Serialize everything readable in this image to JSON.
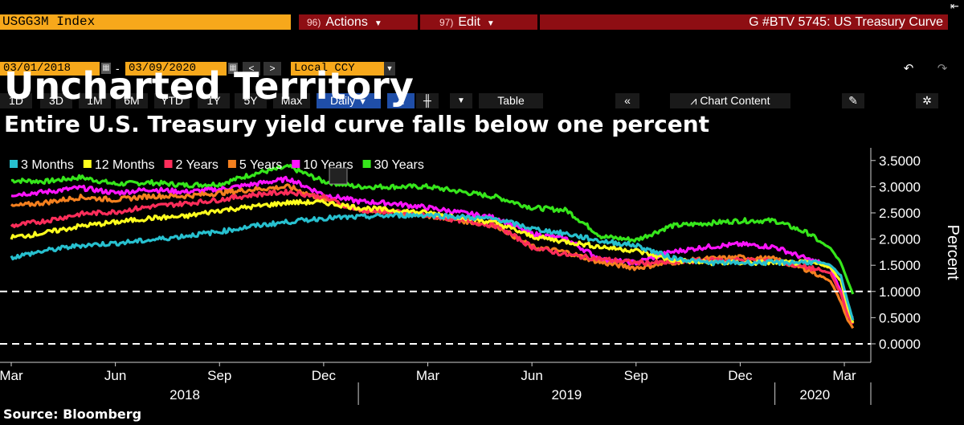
{
  "toolbar": {
    "ticker": "USGG3M Index",
    "actions_num": "96)",
    "actions_label": "Actions",
    "edit_num": "97)",
    "edit_label": "Edit",
    "chart_name": "G #BTV 5745: US Treasury Curve",
    "start_date": "03/01/2018",
    "dash": "-",
    "end_date": "03/09/2020",
    "currency": "Local CCY",
    "periods": [
      "1D",
      "3D",
      "1M",
      "6M",
      "YTD",
      "1Y",
      "5Y",
      "Max"
    ],
    "frequency": "Daily",
    "table_label": "Table",
    "chart_content_label": "Chart Content"
  },
  "headline": "Uncharted Territory",
  "subheadline": "Entire U.S. Treasury yield curve falls below one percent",
  "source": "Source: Bloomberg",
  "colors": {
    "m3": "#27c0cf",
    "m12": "#ffff1e",
    "y2": "#ff2d5a",
    "y5": "#f4801f",
    "y10": "#ff14ff",
    "y30": "#36e61b",
    "ticker_bg": "#f7a81b",
    "red_bar": "#8e0e13"
  },
  "chart_data": {
    "type": "line",
    "title": "Entire U.S. Treasury yield curve falls below one percent",
    "xlabel": "",
    "ylabel": "Percent",
    "ylim": [
      -0.2,
      3.65
    ],
    "x_range": [
      0,
      24.3
    ],
    "x_unit": "months since 2018-03-01",
    "y_ticks": [
      "3.5000",
      "3.0000",
      "2.5000",
      "2.0000",
      "1.5000",
      "1.0000",
      "0.5000",
      "0.0000"
    ],
    "y_tick_values": [
      3.5,
      3.0,
      2.5,
      2.0,
      1.5,
      1.0,
      0.5,
      0.0
    ],
    "x_ticks": [
      {
        "label": "Mar",
        "x": 0
      },
      {
        "label": "Jun",
        "x": 3
      },
      {
        "label": "Sep",
        "x": 6
      },
      {
        "label": "Dec",
        "x": 9
      },
      {
        "label": "Mar",
        "x": 12
      },
      {
        "label": "Jun",
        "x": 15
      },
      {
        "label": "Sep",
        "x": 18
      },
      {
        "label": "Dec",
        "x": 21
      },
      {
        "label": "Mar",
        "x": 24
      }
    ],
    "year_labels": [
      {
        "label": "2018",
        "from": 0,
        "to": 10
      },
      {
        "label": "2019",
        "from": 10,
        "to": 22
      },
      {
        "label": "2020",
        "from": 22,
        "to": 24.3
      }
    ],
    "reference_lines": [
      1.0,
      0.0
    ],
    "legend": "top-left",
    "x": [
      0,
      1,
      2,
      3,
      4,
      5,
      6,
      7,
      8,
      9,
      10,
      11,
      12,
      13,
      14,
      15,
      16,
      17,
      18,
      19,
      20,
      21,
      22,
      23,
      23.3,
      23.6,
      23.9,
      24.1,
      24.25
    ],
    "series": [
      {
        "name": "3 Months",
        "key": "m3",
        "values": [
          1.65,
          1.78,
          1.88,
          1.92,
          1.98,
          2.06,
          2.14,
          2.25,
          2.33,
          2.4,
          2.42,
          2.45,
          2.46,
          2.42,
          2.38,
          2.2,
          2.1,
          1.96,
          1.88,
          1.65,
          1.55,
          1.55,
          1.55,
          1.56,
          1.55,
          1.5,
          1.3,
          0.8,
          0.45
        ]
      },
      {
        "name": "12 Months",
        "key": "m12",
        "values": [
          2.03,
          2.12,
          2.25,
          2.32,
          2.4,
          2.43,
          2.55,
          2.62,
          2.7,
          2.7,
          2.6,
          2.55,
          2.5,
          2.42,
          2.3,
          2.05,
          1.95,
          1.85,
          1.78,
          1.6,
          1.55,
          1.55,
          1.55,
          1.55,
          1.52,
          1.45,
          1.2,
          0.7,
          0.4
        ]
      },
      {
        "name": "2 Years",
        "key": "y2",
        "values": [
          2.25,
          2.35,
          2.48,
          2.52,
          2.62,
          2.68,
          2.75,
          2.85,
          2.9,
          2.8,
          2.55,
          2.52,
          2.45,
          2.35,
          2.25,
          1.85,
          1.7,
          1.62,
          1.55,
          1.55,
          1.6,
          1.6,
          1.58,
          1.45,
          1.4,
          1.35,
          0.95,
          0.55,
          0.38
        ]
      },
      {
        "name": "5 Years",
        "key": "y5",
        "values": [
          2.62,
          2.7,
          2.8,
          2.75,
          2.82,
          2.82,
          2.88,
          2.95,
          3.0,
          2.75,
          2.55,
          2.52,
          2.45,
          2.35,
          2.25,
          1.85,
          1.75,
          1.55,
          1.45,
          1.55,
          1.62,
          1.65,
          1.62,
          1.4,
          1.3,
          1.2,
          0.8,
          0.45,
          0.3
        ]
      },
      {
        "name": "10 Years",
        "key": "y10",
        "values": [
          2.85,
          2.9,
          2.98,
          2.88,
          2.95,
          2.9,
          2.95,
          3.05,
          3.15,
          2.85,
          2.72,
          2.68,
          2.6,
          2.5,
          2.4,
          2.1,
          2.0,
          1.6,
          1.55,
          1.75,
          1.85,
          1.9,
          1.85,
          1.6,
          1.55,
          1.45,
          1.0,
          0.6,
          0.5
        ]
      },
      {
        "name": "30 Years",
        "key": "y30",
        "values": [
          3.12,
          3.1,
          3.18,
          3.05,
          3.08,
          3.03,
          3.05,
          3.25,
          3.38,
          3.1,
          3.0,
          3.0,
          3.0,
          2.9,
          2.8,
          2.6,
          2.55,
          2.05,
          1.98,
          2.25,
          2.3,
          2.35,
          2.35,
          2.1,
          1.95,
          1.82,
          1.55,
          1.2,
          0.95
        ]
      }
    ]
  }
}
